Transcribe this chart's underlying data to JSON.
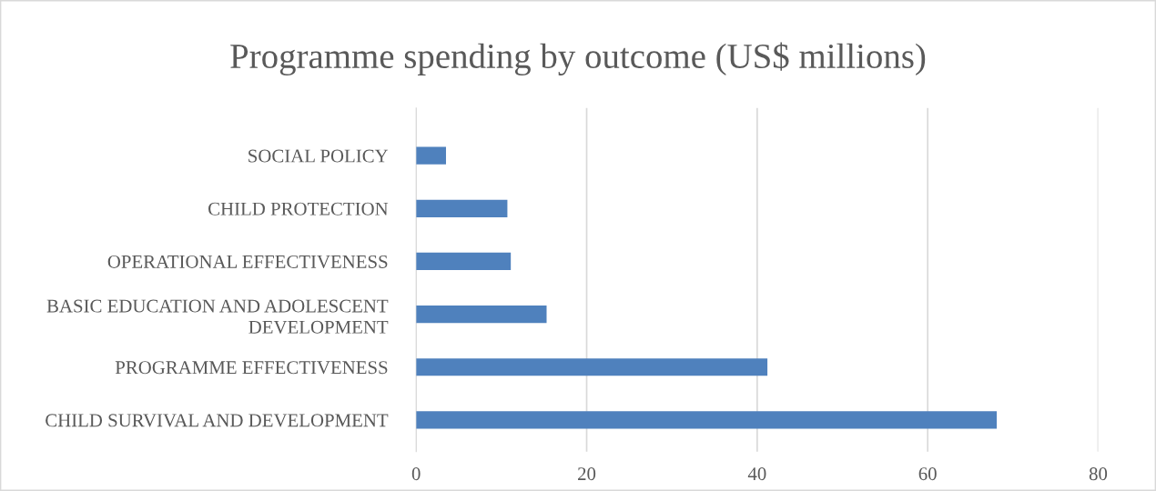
{
  "chart_data": {
    "type": "bar",
    "orientation": "horizontal",
    "title": "Programme spending by outcome (US$ millions)",
    "categories": [
      "SOCIAL POLICY",
      "CHILD PROTECTION",
      "OPERATIONAL EFFECTIVENESS",
      "BASIC EDUCATION AND ADOLESCENT\nDEVELOPMENT",
      "PROGRAMME EFFECTIVENESS",
      "CHILD SURVIVAL AND DEVELOPMENT"
    ],
    "values": [
      3.5,
      10.7,
      11.1,
      15.3,
      41.2,
      68.1
    ],
    "color": "#4f81bd",
    "xlim": [
      0,
      80
    ],
    "xticks": [
      0,
      20,
      40,
      60,
      80
    ],
    "grid": "x",
    "legend": false
  }
}
